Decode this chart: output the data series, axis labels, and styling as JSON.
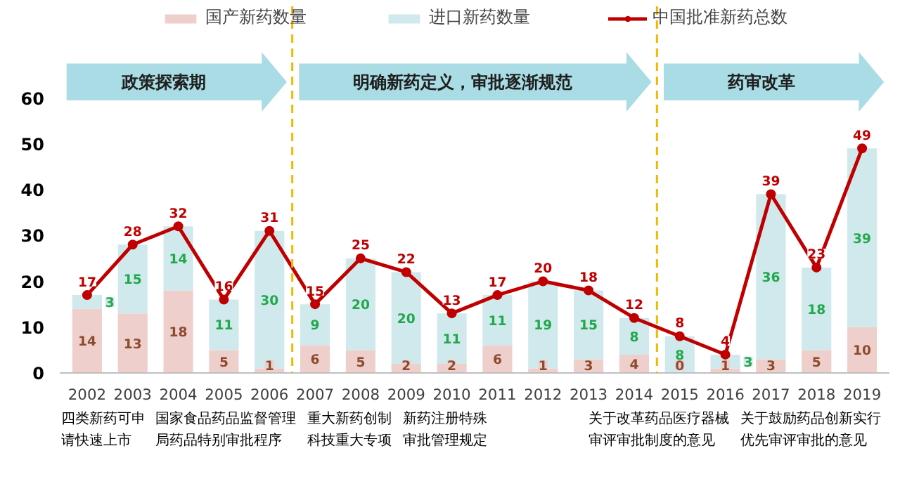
{
  "chart_data": {
    "type": "bar",
    "stacked": true,
    "x": [
      2002,
      2003,
      2004,
      2005,
      2006,
      2007,
      2008,
      2009,
      2010,
      2011,
      2012,
      2013,
      2014,
      2015,
      2016,
      2017,
      2018,
      2019
    ],
    "xlim": [
      2001.4,
      2019.6
    ],
    "xticks": [
      2002,
      2003,
      2004,
      2005,
      2006,
      2007,
      2008,
      2009,
      2010,
      2011,
      2012,
      2013,
      2014,
      2015,
      2016,
      2017,
      2018,
      2019
    ],
    "ylim": [
      0,
      80
    ],
    "yticks": [
      0,
      10,
      20,
      30,
      40,
      50,
      60
    ],
    "series": [
      {
        "name": "国产新药数量",
        "color": "#efcfcb",
        "values": [
          14,
          13,
          18,
          5,
          1,
          6,
          5,
          2,
          2,
          6,
          1,
          3,
          4,
          0,
          1,
          3,
          5,
          10
        ]
      },
      {
        "name": "进口新药数量",
        "color": "#cfe9ec",
        "values": [
          3,
          15,
          14,
          11,
          30,
          9,
          20,
          20,
          11,
          11,
          19,
          15,
          8,
          8,
          3,
          36,
          18,
          39
        ]
      },
      {
        "name": "中国批准新药总数",
        "type": "line",
        "color": "#c00000",
        "values": [
          17,
          28,
          32,
          16,
          31,
          15,
          25,
          22,
          13,
          17,
          20,
          18,
          12,
          8,
          4,
          39,
          23,
          49
        ]
      }
    ],
    "marker": "circle",
    "line_style": "solid",
    "data_labels": true,
    "grid": false,
    "legend": "top",
    "ref_lines": [
      {
        "axis": "x",
        "value": 2006.5,
        "color": "#f5b800",
        "line_style": "dashed"
      },
      {
        "axis": "x",
        "value": 2014.5,
        "color": "#f5b800",
        "line_style": "dashed"
      }
    ],
    "annotations": [
      "政策探索期",
      "明确新药定义，审批逐渐规范",
      "药审改革",
      "四类新药可申请快速上市",
      "国家食品药品监督管理局药品特别审批程序",
      "重大新药创制科技重大专项",
      "新药注册特殊审批管理规定",
      "关于改革药品医疗器械审评审批制度的意见",
      "关于鼓励药品创新实行优先审评审批的意见"
    ]
  }
}
